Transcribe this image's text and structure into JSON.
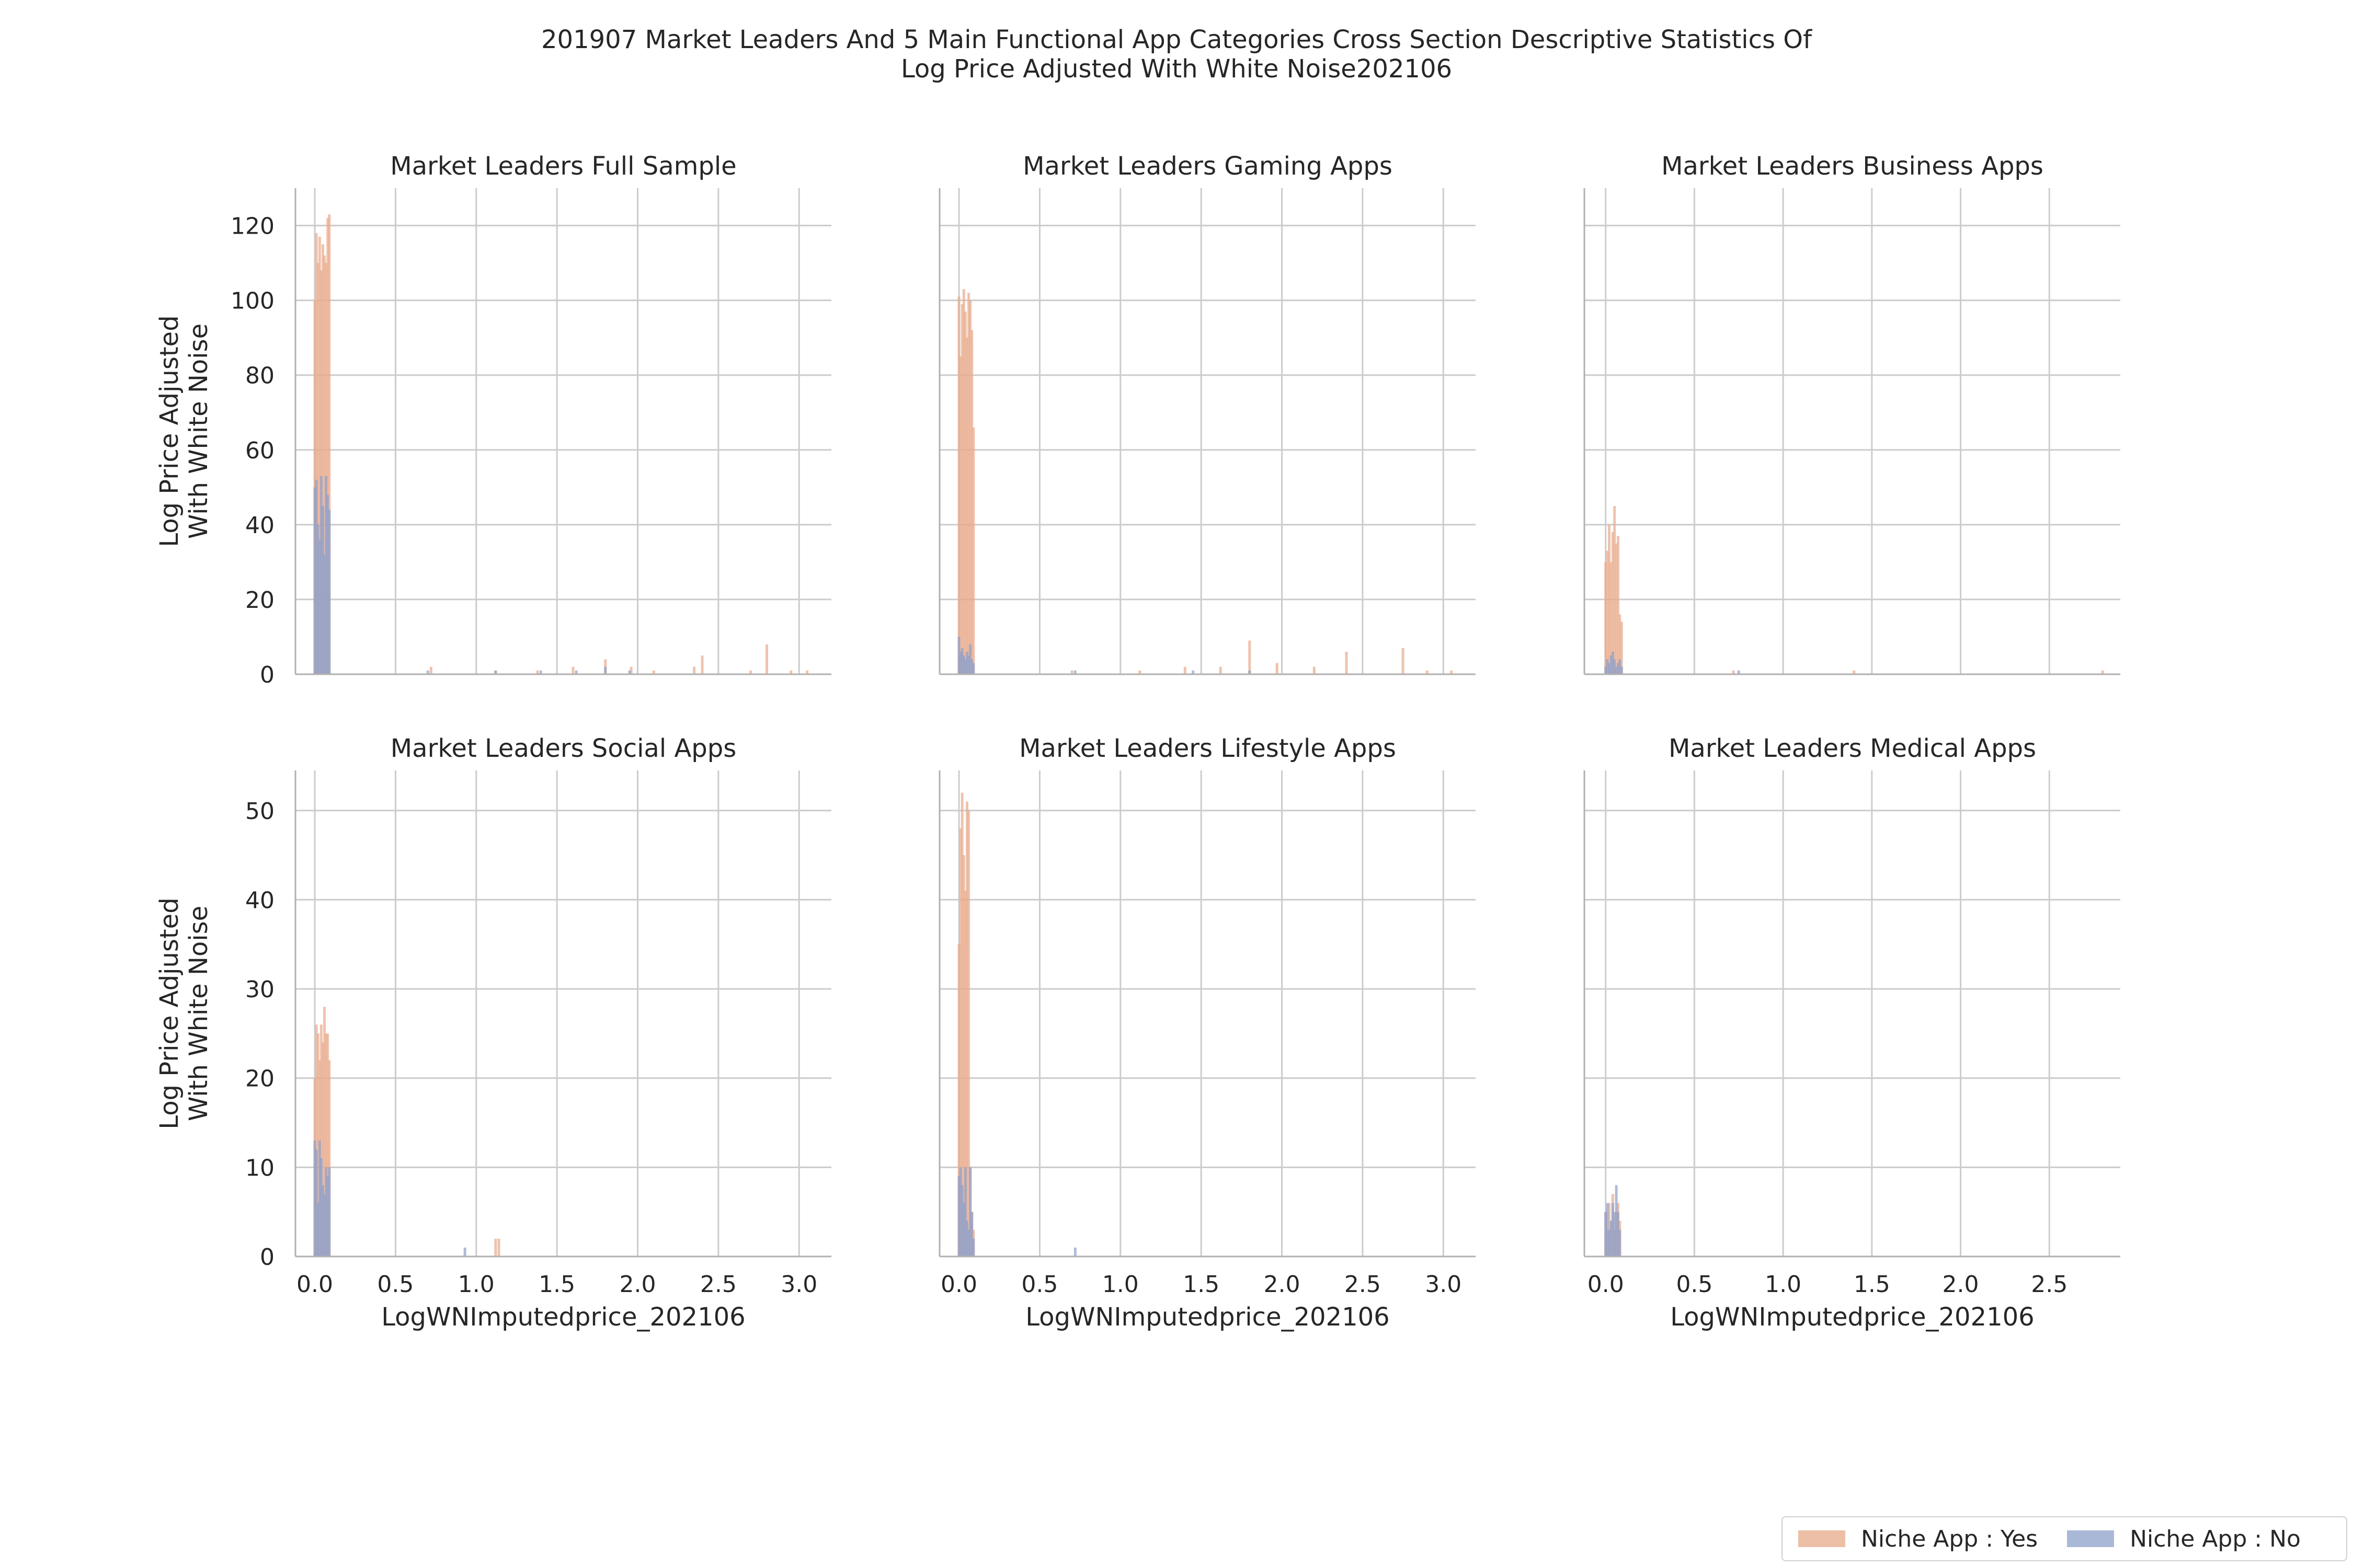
{
  "title": {
    "line1": "201907 Market Leaders And 5 Main Functional App Categories Cross Section Descriptive Statistics Of",
    "line2": "Log Price Adjusted With White Noise202106"
  },
  "legend": {
    "items": [
      {
        "label": "Niche App : Yes",
        "color": "#e8a98a"
      },
      {
        "label": "Niche App : No",
        "color": "#8da0cb"
      }
    ]
  },
  "chart_data": [
    {
      "type": "bar",
      "title": "Market Leaders Full Sample",
      "xlabel": "",
      "ylabel": "Log Price Adjusted\nWith White Noise",
      "xlim": [
        -0.12,
        3.2
      ],
      "ylim": [
        0,
        130
      ],
      "xticks": [
        0.0,
        0.5,
        1.0,
        1.5,
        2.0,
        2.5,
        3.0
      ],
      "yticks": [
        0,
        20,
        40,
        60,
        80,
        100,
        120
      ],
      "show_xticklabels": false,
      "show_yticklabels": true,
      "grid": true,
      "series": [
        {
          "name": "Niche App : Yes",
          "x": [
            0.0,
            0.01,
            0.02,
            0.03,
            0.04,
            0.05,
            0.06,
            0.07,
            0.08,
            0.09,
            0.72,
            1.12,
            1.38,
            1.6,
            1.8,
            1.96,
            2.1,
            2.35,
            2.4,
            2.7,
            2.8,
            2.95,
            3.05
          ],
          "values": [
            100,
            118,
            110,
            117,
            108,
            115,
            112,
            110,
            122,
            123,
            2,
            1,
            1,
            2,
            4,
            2,
            1,
            2,
            5,
            1,
            8,
            1,
            1
          ]
        },
        {
          "name": "Niche App : No",
          "x": [
            0.0,
            0.01,
            0.02,
            0.03,
            0.04,
            0.05,
            0.06,
            0.07,
            0.08,
            0.09,
            0.7,
            1.12,
            1.4,
            1.62,
            1.8,
            1.95
          ],
          "values": [
            50,
            52,
            40,
            36,
            53,
            45,
            32,
            53,
            48,
            44,
            1,
            1,
            1,
            1,
            2,
            1
          ]
        }
      ]
    },
    {
      "type": "bar",
      "title": "Market Leaders Gaming Apps",
      "xlabel": "",
      "ylabel": "",
      "xlim": [
        -0.12,
        3.2
      ],
      "ylim": [
        0,
        130
      ],
      "xticks": [
        0.0,
        0.5,
        1.0,
        1.5,
        2.0,
        2.5,
        3.0
      ],
      "yticks": [
        0,
        20,
        40,
        60,
        80,
        100,
        120
      ],
      "show_xticklabels": false,
      "show_yticklabels": false,
      "grid": true,
      "series": [
        {
          "name": "Niche App : Yes",
          "x": [
            0.0,
            0.01,
            0.02,
            0.03,
            0.04,
            0.05,
            0.06,
            0.07,
            0.08,
            0.09,
            0.7,
            1.12,
            1.4,
            1.62,
            1.8,
            1.97,
            2.2,
            2.4,
            2.75,
            2.9,
            3.05
          ],
          "values": [
            101,
            85,
            99,
            103,
            97,
            90,
            102,
            100,
            92,
            66,
            1,
            1,
            2,
            2,
            9,
            3,
            2,
            6,
            7,
            1,
            1
          ]
        },
        {
          "name": "Niche App : No",
          "x": [
            0.0,
            0.01,
            0.02,
            0.03,
            0.04,
            0.05,
            0.06,
            0.07,
            0.08,
            0.09,
            0.72,
            1.45,
            1.8
          ],
          "values": [
            10,
            6,
            7,
            5,
            4,
            6,
            5,
            8,
            4,
            3,
            1,
            1,
            1
          ]
        }
      ]
    },
    {
      "type": "bar",
      "title": "Market Leaders Business Apps",
      "xlabel": "",
      "ylabel": "",
      "xlim": [
        -0.12,
        2.9
      ],
      "ylim": [
        0,
        130
      ],
      "xticks": [
        0.0,
        0.5,
        1.0,
        1.5,
        2.0,
        2.5
      ],
      "yticks": [
        0,
        20,
        40,
        60,
        80,
        100,
        120
      ],
      "show_xticklabels": false,
      "show_yticklabels": false,
      "grid": true,
      "series": [
        {
          "name": "Niche App : Yes",
          "x": [
            0.0,
            0.01,
            0.02,
            0.03,
            0.04,
            0.05,
            0.06,
            0.07,
            0.08,
            0.09,
            0.72,
            1.4,
            2.8
          ],
          "values": [
            30,
            33,
            40,
            30,
            38,
            45,
            35,
            37,
            16,
            14,
            1,
            1,
            1
          ]
        },
        {
          "name": "Niche App : No",
          "x": [
            0.0,
            0.01,
            0.02,
            0.03,
            0.04,
            0.05,
            0.06,
            0.07,
            0.08,
            0.09,
            0.75
          ],
          "values": [
            2,
            4,
            3,
            5,
            6,
            4,
            2,
            3,
            4,
            2,
            1
          ]
        }
      ]
    },
    {
      "type": "bar",
      "title": "Market Leaders Social Apps",
      "xlabel": "LogWNImputedprice_202106",
      "ylabel": "Log Price Adjusted\nWith White Noise",
      "xlim": [
        -0.12,
        3.2
      ],
      "ylim": [
        0,
        54.5
      ],
      "xticks": [
        0.0,
        0.5,
        1.0,
        1.5,
        2.0,
        2.5,
        3.0
      ],
      "yticks": [
        0,
        10,
        20,
        30,
        40,
        50
      ],
      "show_xticklabels": true,
      "show_yticklabels": true,
      "grid": true,
      "series": [
        {
          "name": "Niche App : Yes",
          "x": [
            0.0,
            0.01,
            0.02,
            0.03,
            0.04,
            0.05,
            0.06,
            0.07,
            0.08,
            0.09,
            1.12,
            1.14
          ],
          "values": [
            20,
            26,
            25,
            22,
            26,
            24,
            28,
            25,
            25,
            22,
            2,
            2
          ]
        },
        {
          "name": "Niche App : No",
          "x": [
            0.0,
            0.01,
            0.02,
            0.03,
            0.04,
            0.05,
            0.06,
            0.07,
            0.08,
            0.09,
            0.93
          ],
          "values": [
            13,
            12,
            6,
            13,
            11,
            8,
            7,
            10,
            9,
            10,
            1
          ]
        }
      ]
    },
    {
      "type": "bar",
      "title": "Market Leaders Lifestyle Apps",
      "xlabel": "LogWNImputedprice_202106",
      "ylabel": "",
      "xlim": [
        -0.12,
        3.2
      ],
      "ylim": [
        0,
        54.5
      ],
      "xticks": [
        0.0,
        0.5,
        1.0,
        1.5,
        2.0,
        2.5,
        3.0
      ],
      "yticks": [
        0,
        10,
        20,
        30,
        40,
        50
      ],
      "show_xticklabels": true,
      "show_yticklabels": false,
      "grid": true,
      "series": [
        {
          "name": "Niche App : Yes",
          "x": [
            0.0,
            0.01,
            0.02,
            0.03,
            0.04,
            0.05,
            0.06,
            0.07,
            0.08,
            0.09
          ],
          "values": [
            35,
            48,
            52,
            45,
            41,
            51,
            50,
            10,
            5,
            3
          ]
        },
        {
          "name": "Niche App : No",
          "x": [
            0.0,
            0.01,
            0.02,
            0.03,
            0.04,
            0.05,
            0.06,
            0.07,
            0.08,
            0.09,
            0.72
          ],
          "values": [
            9,
            10,
            8,
            6,
            10,
            4,
            3,
            10,
            5,
            2,
            1
          ]
        }
      ]
    },
    {
      "type": "bar",
      "title": "Market Leaders Medical Apps",
      "xlabel": "LogWNImputedprice_202106",
      "ylabel": "",
      "xlim": [
        -0.12,
        2.9
      ],
      "ylim": [
        0,
        54.5
      ],
      "xticks": [
        0.0,
        0.5,
        1.0,
        1.5,
        2.0,
        2.5
      ],
      "yticks": [
        0,
        10,
        20,
        30,
        40,
        50
      ],
      "show_xticklabels": true,
      "show_yticklabels": false,
      "grid": true,
      "series": [
        {
          "name": "Niche App : Yes",
          "x": [
            0.0,
            0.01,
            0.02,
            0.03,
            0.04,
            0.05,
            0.06,
            0.07,
            0.08
          ],
          "values": [
            5,
            3,
            6,
            4,
            7,
            3,
            5,
            6,
            4
          ]
        },
        {
          "name": "Niche App : No",
          "x": [
            0.0,
            0.01,
            0.02,
            0.03,
            0.04,
            0.05,
            0.06,
            0.07,
            0.08
          ],
          "values": [
            5,
            6,
            3,
            4,
            6,
            5,
            8,
            5,
            3
          ]
        }
      ]
    }
  ]
}
